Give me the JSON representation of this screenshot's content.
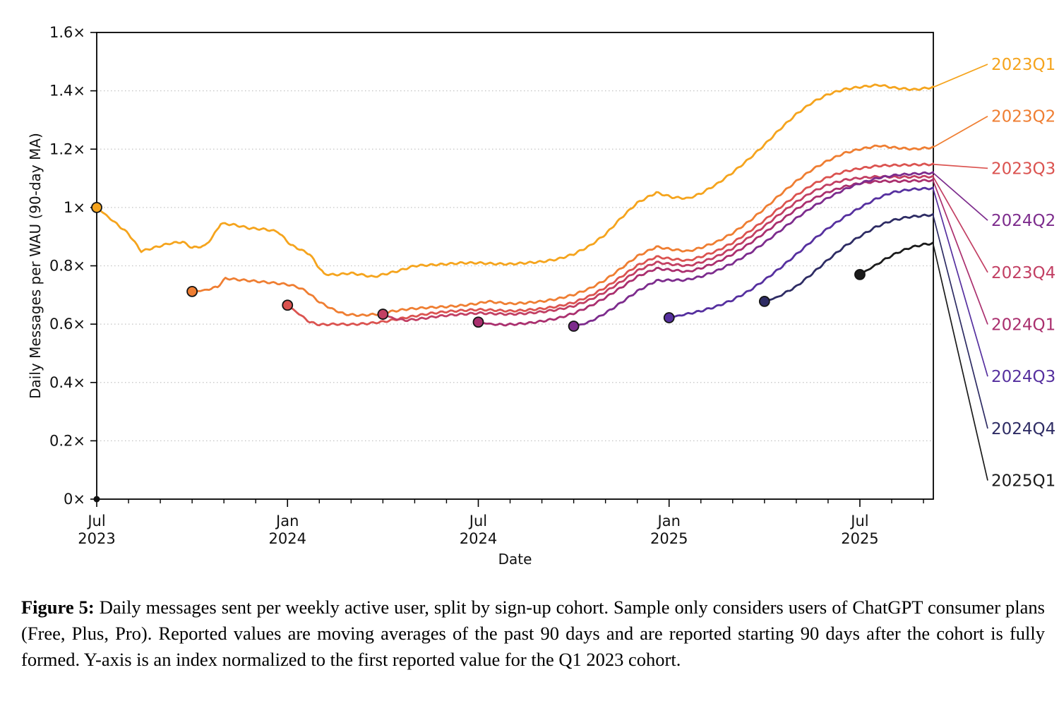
{
  "figure": {
    "caption_label": "Figure 5:",
    "caption_text": "Daily messages sent per weekly active user, split by sign-up cohort. Sample only considers users of ChatGPT consumer plans (Free, Plus, Pro). Reported values are moving averages of the past 90 days and are reported starting 90 days after the cohort is fully formed. Y-axis is an index normalized to the first reported value for the Q1 2023 cohort."
  },
  "chart_data": {
    "type": "line",
    "title": "",
    "xlabel": "Date",
    "ylabel": "Daily Messages per WAU (90-day MA)",
    "ylim": [
      0,
      1.6
    ],
    "grid": "horizontal-dotted",
    "legend_position": "right-outside-with-leader-lines",
    "x_unit": "months since Jul 2023",
    "x_max_month": 26.3,
    "yticks": [
      {
        "v": 0.0,
        "label": "0×"
      },
      {
        "v": 0.2,
        "label": "0.2×"
      },
      {
        "v": 0.4,
        "label": "0.4×"
      },
      {
        "v": 0.6,
        "label": "0.6×"
      },
      {
        "v": 0.8,
        "label": "0.8×"
      },
      {
        "v": 1.0,
        "label": "1×"
      },
      {
        "v": 1.2,
        "label": "1.2×"
      },
      {
        "v": 1.4,
        "label": "1.4×"
      },
      {
        "v": 1.6,
        "label": "1.6×"
      }
    ],
    "xticks_major": [
      {
        "m": 0,
        "month": "Jul",
        "year": "2023"
      },
      {
        "m": 6,
        "month": "Jan",
        "year": "2024"
      },
      {
        "m": 12,
        "month": "Jul",
        "year": "2024"
      },
      {
        "m": 18,
        "month": "Jan",
        "year": "2025"
      },
      {
        "m": 24,
        "month": "Jul",
        "year": "2025"
      }
    ],
    "xticks_minor_monthly": true,
    "origin_dot": {
      "m": 0,
      "v": 0,
      "color": "#111111"
    },
    "legend_order": [
      "2023Q1",
      "2023Q2",
      "2023Q3",
      "2024Q2",
      "2023Q4",
      "2024Q1",
      "2024Q3",
      "2024Q4",
      "2025Q1"
    ],
    "series": [
      {
        "name": "2023Q1",
        "color": "#F5A41D",
        "start_marker": true,
        "points": [
          [
            0,
            1.0
          ],
          [
            0.5,
            0.955
          ],
          [
            1,
            0.91
          ],
          [
            1.4,
            0.85
          ],
          [
            1.8,
            0.862
          ],
          [
            2.3,
            0.877
          ],
          [
            2.7,
            0.882
          ],
          [
            3,
            0.862
          ],
          [
            3.4,
            0.868
          ],
          [
            3.65,
            0.9
          ],
          [
            3.9,
            0.945
          ],
          [
            4.3,
            0.941
          ],
          [
            4.8,
            0.929
          ],
          [
            5.3,
            0.925
          ],
          [
            5.7,
            0.917
          ],
          [
            6.1,
            0.872
          ],
          [
            6.45,
            0.853
          ],
          [
            6.7,
            0.84
          ],
          [
            6.95,
            0.8
          ],
          [
            7.15,
            0.772
          ],
          [
            7.5,
            0.769
          ],
          [
            8,
            0.775
          ],
          [
            8.4,
            0.768
          ],
          [
            8.7,
            0.762
          ],
          [
            9,
            0.77
          ],
          [
            9.5,
            0.783
          ],
          [
            10,
            0.8
          ],
          [
            10.5,
            0.803
          ],
          [
            11,
            0.806
          ],
          [
            11.5,
            0.81
          ],
          [
            12,
            0.81
          ],
          [
            12.5,
            0.807
          ],
          [
            13,
            0.806
          ],
          [
            13.5,
            0.81
          ],
          [
            14,
            0.814
          ],
          [
            14.5,
            0.823
          ],
          [
            15,
            0.84
          ],
          [
            15.5,
            0.868
          ],
          [
            16,
            0.908
          ],
          [
            16.5,
            0.965
          ],
          [
            17,
            1.016
          ],
          [
            17.6,
            1.051
          ],
          [
            18.1,
            1.035
          ],
          [
            18.6,
            1.031
          ],
          [
            19,
            1.048
          ],
          [
            19.5,
            1.08
          ],
          [
            20,
            1.12
          ],
          [
            20.5,
            1.165
          ],
          [
            21,
            1.215
          ],
          [
            21.5,
            1.27
          ],
          [
            22,
            1.32
          ],
          [
            22.5,
            1.36
          ],
          [
            23,
            1.388
          ],
          [
            23.5,
            1.405
          ],
          [
            24,
            1.413
          ],
          [
            24.6,
            1.42
          ],
          [
            25.1,
            1.41
          ],
          [
            25.7,
            1.404
          ],
          [
            26.3,
            1.412
          ]
        ]
      },
      {
        "name": "2023Q2",
        "color": "#EF7E32",
        "start_marker": true,
        "points": [
          [
            3,
            0.712
          ],
          [
            3.4,
            0.716
          ],
          [
            3.8,
            0.728
          ],
          [
            4.05,
            0.757
          ],
          [
            4.5,
            0.752
          ],
          [
            5,
            0.747
          ],
          [
            5.5,
            0.742
          ],
          [
            6,
            0.736
          ],
          [
            6.3,
            0.728
          ],
          [
            6.6,
            0.712
          ],
          [
            7,
            0.676
          ],
          [
            7.4,
            0.652
          ],
          [
            7.8,
            0.634
          ],
          [
            8.3,
            0.63
          ],
          [
            8.8,
            0.634
          ],
          [
            9.3,
            0.644
          ],
          [
            9.8,
            0.652
          ],
          [
            10.3,
            0.656
          ],
          [
            11,
            0.66
          ],
          [
            11.5,
            0.664
          ],
          [
            12,
            0.671
          ],
          [
            12.3,
            0.678
          ],
          [
            12.7,
            0.673
          ],
          [
            13,
            0.67
          ],
          [
            13.5,
            0.673
          ],
          [
            14,
            0.678
          ],
          [
            14.5,
            0.687
          ],
          [
            15,
            0.701
          ],
          [
            15.5,
            0.722
          ],
          [
            16,
            0.752
          ],
          [
            16.5,
            0.792
          ],
          [
            17,
            0.833
          ],
          [
            17.6,
            0.865
          ],
          [
            18.1,
            0.856
          ],
          [
            18.6,
            0.85
          ],
          [
            19,
            0.862
          ],
          [
            19.5,
            0.882
          ],
          [
            20,
            0.912
          ],
          [
            20.5,
            0.951
          ],
          [
            21,
            0.996
          ],
          [
            21.5,
            1.045
          ],
          [
            22,
            1.09
          ],
          [
            22.5,
            1.13
          ],
          [
            23,
            1.161
          ],
          [
            23.5,
            1.186
          ],
          [
            24,
            1.2
          ],
          [
            24.6,
            1.212
          ],
          [
            25.1,
            1.205
          ],
          [
            25.7,
            1.2
          ],
          [
            26.3,
            1.206
          ]
        ]
      },
      {
        "name": "2023Q3",
        "color": "#DB5350",
        "start_marker": true,
        "points": [
          [
            6,
            0.665
          ],
          [
            6.3,
            0.64
          ],
          [
            6.7,
            0.607
          ],
          [
            7,
            0.598
          ],
          [
            7.5,
            0.6
          ],
          [
            8,
            0.599
          ],
          [
            8.5,
            0.602
          ],
          [
            9,
            0.608
          ],
          [
            9.5,
            0.618
          ],
          [
            10,
            0.628
          ],
          [
            10.5,
            0.637
          ],
          [
            11,
            0.643
          ],
          [
            11.5,
            0.647
          ],
          [
            12,
            0.65
          ],
          [
            12.5,
            0.648
          ],
          [
            13,
            0.645
          ],
          [
            13.5,
            0.648
          ],
          [
            14,
            0.653
          ],
          [
            14.5,
            0.661
          ],
          [
            15,
            0.674
          ],
          [
            15.5,
            0.696
          ],
          [
            16,
            0.726
          ],
          [
            16.5,
            0.763
          ],
          [
            17,
            0.801
          ],
          [
            17.6,
            0.831
          ],
          [
            18.1,
            0.823
          ],
          [
            18.6,
            0.818
          ],
          [
            19,
            0.831
          ],
          [
            19.5,
            0.851
          ],
          [
            20,
            0.879
          ],
          [
            20.5,
            0.916
          ],
          [
            21,
            0.956
          ],
          [
            21.5,
            1.001
          ],
          [
            22,
            1.042
          ],
          [
            22.5,
            1.078
          ],
          [
            23,
            1.104
          ],
          [
            23.5,
            1.123
          ],
          [
            24,
            1.134
          ],
          [
            24.6,
            1.143
          ],
          [
            25.2,
            1.145
          ],
          [
            26.3,
            1.148
          ]
        ]
      },
      {
        "name": "2023Q4",
        "color": "#C23F63",
        "start_marker": true,
        "points": [
          [
            9,
            0.634
          ],
          [
            9.35,
            0.619
          ],
          [
            9.7,
            0.613
          ],
          [
            10.1,
            0.617
          ],
          [
            10.6,
            0.625
          ],
          [
            11,
            0.63
          ],
          [
            11.5,
            0.634
          ],
          [
            12,
            0.638
          ],
          [
            12.5,
            0.636
          ],
          [
            13,
            0.634
          ],
          [
            13.5,
            0.637
          ],
          [
            14,
            0.642
          ],
          [
            14.5,
            0.65
          ],
          [
            15,
            0.662
          ],
          [
            15.5,
            0.683
          ],
          [
            16,
            0.711
          ],
          [
            16.5,
            0.746
          ],
          [
            17,
            0.783
          ],
          [
            17.6,
            0.812
          ],
          [
            18.1,
            0.805
          ],
          [
            18.6,
            0.8
          ],
          [
            19,
            0.812
          ],
          [
            19.5,
            0.832
          ],
          [
            20,
            0.86
          ],
          [
            20.5,
            0.896
          ],
          [
            21,
            0.936
          ],
          [
            21.5,
            0.979
          ],
          [
            22,
            1.019
          ],
          [
            22.5,
            1.053
          ],
          [
            23,
            1.078
          ],
          [
            23.5,
            1.094
          ],
          [
            24,
            1.101
          ],
          [
            24.6,
            1.106
          ],
          [
            25.2,
            1.104
          ],
          [
            26.3,
            1.106
          ]
        ]
      },
      {
        "name": "2024Q1",
        "color": "#AA2F6E",
        "start_marker": true,
        "points": [
          [
            12,
            0.607
          ],
          [
            12.4,
            0.6
          ],
          [
            12.8,
            0.598
          ],
          [
            13.2,
            0.6
          ],
          [
            13.6,
            0.604
          ],
          [
            14,
            0.61
          ],
          [
            14.5,
            0.62
          ],
          [
            15,
            0.637
          ],
          [
            15.5,
            0.661
          ],
          [
            16,
            0.691
          ],
          [
            16.5,
            0.726
          ],
          [
            17,
            0.763
          ],
          [
            17.6,
            0.791
          ],
          [
            18.1,
            0.785
          ],
          [
            18.6,
            0.78
          ],
          [
            19,
            0.792
          ],
          [
            19.5,
            0.812
          ],
          [
            20,
            0.84
          ],
          [
            20.5,
            0.874
          ],
          [
            21,
            0.913
          ],
          [
            21.5,
            0.954
          ],
          [
            22,
            0.994
          ],
          [
            22.5,
            1.028
          ],
          [
            23,
            1.053
          ],
          [
            23.5,
            1.071
          ],
          [
            24,
            1.083
          ],
          [
            24.6,
            1.09
          ],
          [
            25.2,
            1.09
          ],
          [
            26.3,
            1.093
          ]
        ]
      },
      {
        "name": "2024Q2",
        "color": "#7D2C8D",
        "start_marker": true,
        "points": [
          [
            15,
            0.593
          ],
          [
            15.4,
            0.603
          ],
          [
            15.8,
            0.625
          ],
          [
            16.2,
            0.652
          ],
          [
            16.6,
            0.682
          ],
          [
            17,
            0.713
          ],
          [
            17.6,
            0.749
          ],
          [
            18.1,
            0.751
          ],
          [
            18.5,
            0.751
          ],
          [
            19,
            0.763
          ],
          [
            19.5,
            0.783
          ],
          [
            20,
            0.809
          ],
          [
            20.5,
            0.841
          ],
          [
            21,
            0.879
          ],
          [
            21.5,
            0.921
          ],
          [
            22,
            0.963
          ],
          [
            22.5,
            1.001
          ],
          [
            23,
            1.033
          ],
          [
            23.5,
            1.061
          ],
          [
            24,
            1.083
          ],
          [
            24.6,
            1.102
          ],
          [
            25.2,
            1.112
          ],
          [
            25.8,
            1.116
          ],
          [
            26.3,
            1.119
          ]
        ]
      },
      {
        "name": "2024Q3",
        "color": "#56309F",
        "start_marker": true,
        "points": [
          [
            18,
            0.622
          ],
          [
            18.4,
            0.631
          ],
          [
            19,
            0.645
          ],
          [
            19.5,
            0.661
          ],
          [
            20,
            0.683
          ],
          [
            20.5,
            0.713
          ],
          [
            21,
            0.751
          ],
          [
            21.5,
            0.793
          ],
          [
            22,
            0.839
          ],
          [
            22.5,
            0.886
          ],
          [
            23,
            0.929
          ],
          [
            23.5,
            0.966
          ],
          [
            24,
            0.999
          ],
          [
            24.5,
            1.029
          ],
          [
            25,
            1.051
          ],
          [
            25.6,
            1.062
          ],
          [
            26.3,
            1.066
          ]
        ]
      },
      {
        "name": "2024Q4",
        "color": "#2E2C64",
        "start_marker": true,
        "points": [
          [
            21,
            0.678
          ],
          [
            21.4,
            0.692
          ],
          [
            22,
            0.729
          ],
          [
            22.5,
            0.773
          ],
          [
            23,
            0.821
          ],
          [
            23.5,
            0.865
          ],
          [
            24,
            0.901
          ],
          [
            24.5,
            0.933
          ],
          [
            25,
            0.955
          ],
          [
            25.5,
            0.967
          ],
          [
            26.3,
            0.975
          ]
        ]
      },
      {
        "name": "2025Q1",
        "color": "#1B1B1B",
        "start_marker": true,
        "points": [
          [
            24,
            0.77
          ],
          [
            24.4,
            0.796
          ],
          [
            24.8,
            0.823
          ],
          [
            25.2,
            0.846
          ],
          [
            25.6,
            0.863
          ],
          [
            26,
            0.873
          ],
          [
            26.3,
            0.877
          ]
        ]
      }
    ]
  }
}
